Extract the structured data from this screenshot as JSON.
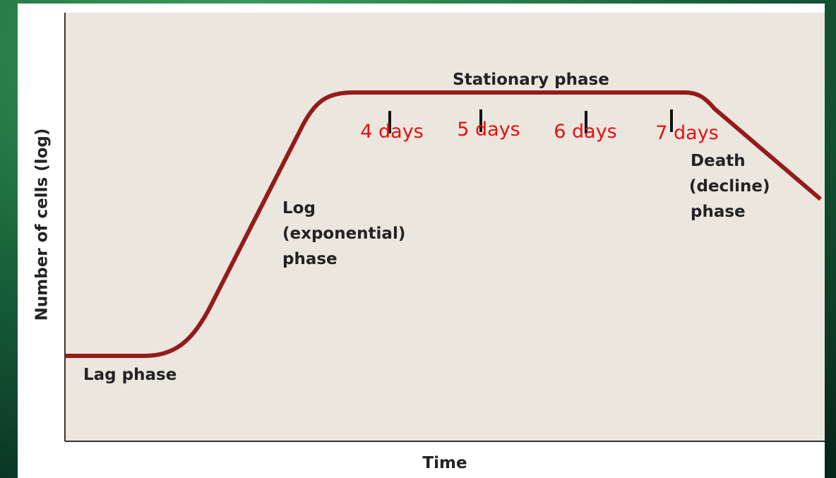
{
  "axes": {
    "y_label": "Number of cells (log)",
    "x_label": "Time"
  },
  "phases": {
    "lag": "Lag phase",
    "log": [
      "Log",
      "(exponential)",
      "phase"
    ],
    "stationary": "Stationary phase",
    "death": [
      "Death",
      "(decline)",
      "phase"
    ]
  },
  "markers": [
    "4 days",
    "5 days",
    "6 days",
    "7 days"
  ]
}
